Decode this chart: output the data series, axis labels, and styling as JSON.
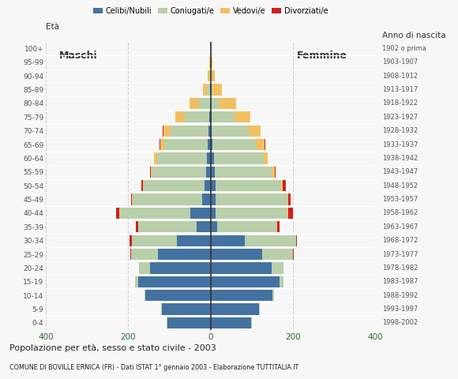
{
  "title": "Popolazione per età, sesso e stato civile - 2003",
  "subtitle": "COMUNE DI BOVILLE ERNICA (FR) - Dati ISTAT 1° gennaio 2003 - Elaborazione TUTTITALIA.IT",
  "label_eta": "Età",
  "label_anno": "Anno di nascita",
  "label_maschi": "Maschi",
  "label_femmine": "Femmine",
  "age_groups": [
    "0-4",
    "5-9",
    "10-14",
    "15-19",
    "20-24",
    "25-29",
    "30-34",
    "35-39",
    "40-44",
    "45-49",
    "50-54",
    "55-59",
    "60-64",
    "65-69",
    "70-74",
    "75-79",
    "80-84",
    "85-89",
    "90-94",
    "95-99",
    "100+"
  ],
  "birth_years": [
    "1998-2002",
    "1993-1997",
    "1988-1992",
    "1983-1987",
    "1978-1982",
    "1973-1977",
    "1968-1972",
    "1963-1967",
    "1958-1962",
    "1953-1957",
    "1948-1952",
    "1943-1947",
    "1938-1942",
    "1933-1937",
    "1928-1932",
    "1923-1927",
    "1918-1922",
    "1913-1917",
    "1908-1912",
    "1903-1907",
    "1902 o prima"
  ],
  "colors": {
    "celibe": "#4472a0",
    "coniugato": "#b8cfaa",
    "vedovo": "#f0c060",
    "divorziato": "#cc2222"
  },
  "legend_labels": [
    "Celibi/Nubili",
    "Coniugati/e",
    "Vedovi/e",
    "Divorziati/e"
  ],
  "males": {
    "celibe": [
      105,
      118,
      158,
      175,
      148,
      128,
      82,
      35,
      50,
      20,
      15,
      12,
      10,
      8,
      5,
      3,
      1,
      1,
      0,
      0,
      0
    ],
    "coniugato": [
      2,
      2,
      3,
      8,
      25,
      65,
      110,
      140,
      170,
      170,
      148,
      132,
      120,
      105,
      92,
      60,
      28,
      8,
      3,
      1,
      0
    ],
    "vedovo": [
      0,
      0,
      0,
      0,
      0,
      0,
      0,
      0,
      2,
      2,
      2,
      2,
      8,
      10,
      18,
      22,
      22,
      10,
      4,
      2,
      1
    ],
    "divorziato": [
      0,
      0,
      0,
      0,
      0,
      2,
      5,
      6,
      8,
      2,
      4,
      2,
      0,
      2,
      2,
      0,
      0,
      0,
      0,
      0,
      0
    ]
  },
  "females": {
    "nubile": [
      98,
      118,
      150,
      168,
      148,
      125,
      82,
      15,
      12,
      12,
      12,
      10,
      8,
      5,
      2,
      2,
      0,
      0,
      0,
      0,
      0
    ],
    "coniugata": [
      2,
      2,
      3,
      8,
      28,
      75,
      125,
      145,
      175,
      175,
      158,
      138,
      120,
      105,
      90,
      55,
      20,
      5,
      2,
      0,
      0
    ],
    "vedova": [
      0,
      0,
      0,
      0,
      0,
      0,
      0,
      2,
      2,
      2,
      5,
      8,
      10,
      20,
      30,
      40,
      42,
      22,
      8,
      4,
      2
    ],
    "divorziata": [
      0,
      0,
      0,
      0,
      0,
      2,
      3,
      5,
      10,
      4,
      8,
      2,
      0,
      2,
      0,
      0,
      0,
      0,
      0,
      0,
      0
    ]
  },
  "xlim": 400,
  "xticks": [
    400,
    300,
    200,
    100,
    0,
    100,
    200,
    300,
    400
  ],
  "background_color": "#f7f7f7",
  "grid_color": "#cccccc",
  "bar_height": 0.82
}
